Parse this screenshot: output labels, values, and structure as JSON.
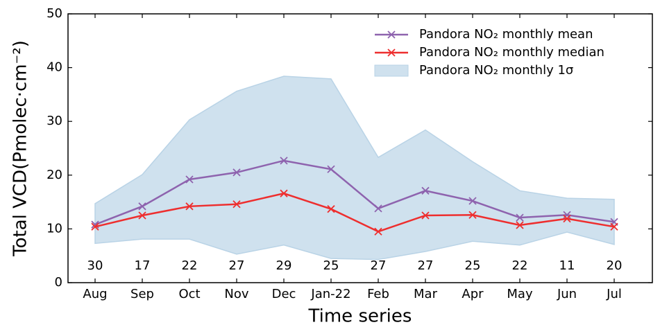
{
  "chart_data": {
    "type": "line",
    "xlabel": "Time series",
    "ylabel": "Total VCD(Pmolec·cm⁻²)",
    "categories": [
      "Aug",
      "Sep",
      "Oct",
      "Nov",
      "Dec",
      "Jan-22",
      "Feb",
      "Mar",
      "Apr",
      "May",
      "Jun",
      "Jul"
    ],
    "counts": [
      "30",
      "17",
      "22",
      "27",
      "29",
      "25",
      "27",
      "27",
      "25",
      "22",
      "11",
      "20"
    ],
    "series": [
      {
        "name": "Pandora NO₂ monthly mean",
        "color": "#8e63ae",
        "values": [
          10.8,
          14.2,
          19.2,
          20.5,
          22.7,
          21.1,
          13.8,
          17.1,
          15.2,
          12.1,
          12.6,
          11.3
        ]
      },
      {
        "name": "Pandora NO₂ monthly median",
        "color": "#ee2e2e",
        "values": [
          10.4,
          12.5,
          14.2,
          14.6,
          16.6,
          13.7,
          9.5,
          12.5,
          12.6,
          10.7,
          11.9,
          10.4
        ]
      }
    ],
    "band": {
      "name": "Pandora NO₂ monthly 1σ",
      "color": "#cfe1ee",
      "upper": [
        14.7,
        20.1,
        30.3,
        35.6,
        38.4,
        37.9,
        23.3,
        28.4,
        22.5,
        17.1,
        15.7,
        15.5
      ],
      "lower": [
        7.3,
        8.1,
        8.1,
        5.3,
        7.0,
        4.5,
        4.3,
        5.8,
        7.7,
        7.0,
        9.4,
        7.1
      ]
    },
    "ylim": [
      0,
      50
    ],
    "yticks": [
      0,
      10,
      20,
      30,
      40,
      50
    ],
    "legend": "upper right"
  }
}
